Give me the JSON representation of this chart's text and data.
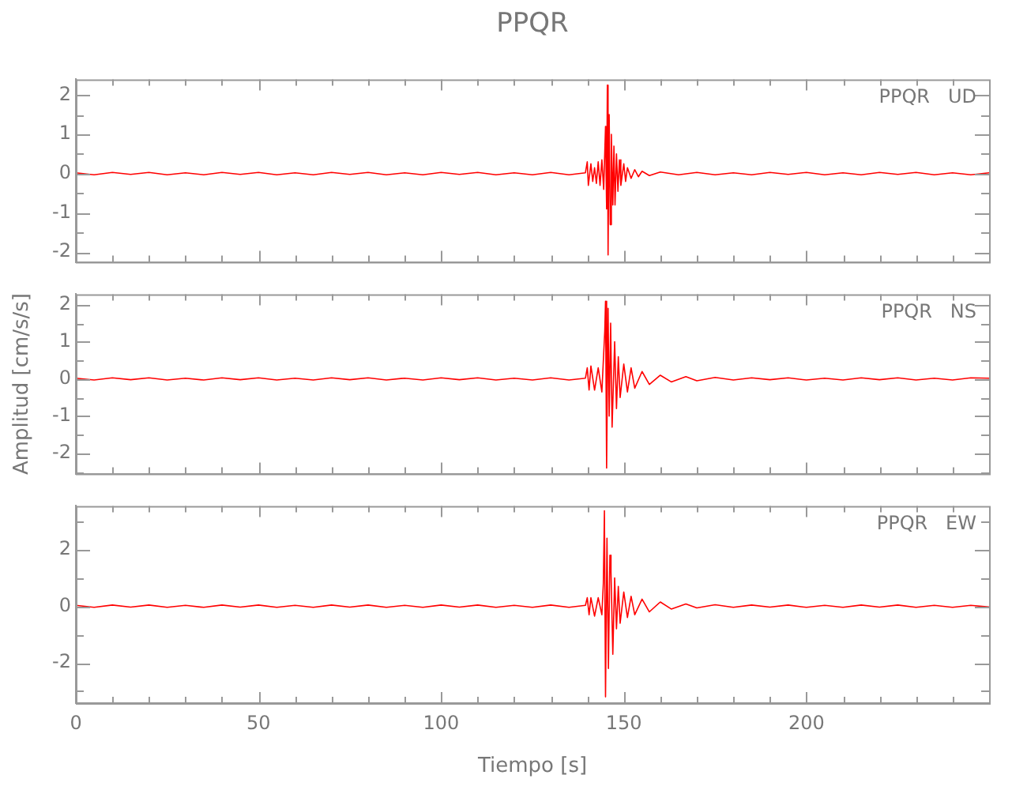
{
  "chart_data": [
    {
      "type": "line",
      "title": "PPQR",
      "annotations": [
        "PPQR   UD"
      ],
      "tick_labels": "y",
      "xlim": [
        0,
        250
      ],
      "ylim": [
        -2.25,
        2.4
      ],
      "xticks": [
        0,
        {
          "value": 10,
          "label": null
        },
        {
          "value": 20,
          "label": null
        },
        {
          "value": 30,
          "label": null
        },
        {
          "value": 40,
          "label": null
        },
        50,
        {
          "value": 60,
          "label": null
        },
        {
          "value": 70,
          "label": null
        },
        {
          "value": 80,
          "label": null
        },
        {
          "value": 90,
          "label": null
        },
        100,
        {
          "value": 110,
          "label": null
        },
        {
          "value": 120,
          "label": null
        },
        {
          "value": 130,
          "label": null
        },
        {
          "value": 140,
          "label": null
        },
        150,
        {
          "value": 160,
          "label": null
        },
        {
          "value": 170,
          "label": null
        },
        {
          "value": 180,
          "label": null
        },
        {
          "value": 190,
          "label": null
        },
        200,
        {
          "value": 210,
          "label": null
        },
        {
          "value": 220,
          "label": null
        },
        {
          "value": 230,
          "label": null
        },
        {
          "value": 240,
          "label": null
        }
      ],
      "yticks": [
        -2,
        {
          "value": -1.5,
          "label": null
        },
        -1,
        {
          "value": -0.5,
          "label": null
        },
        0,
        {
          "value": 0.5,
          "label": null
        },
        1,
        {
          "value": 1.5,
          "label": null
        },
        2
      ],
      "x": [
        0,
        5,
        10,
        15,
        20,
        25,
        30,
        35,
        40,
        45,
        50,
        55,
        60,
        65,
        70,
        75,
        80,
        85,
        90,
        95,
        100,
        105,
        110,
        115,
        120,
        125,
        130,
        135,
        139.5,
        140,
        140.3,
        141,
        141.5,
        142,
        142.5,
        143,
        143.5,
        144,
        144.5,
        145,
        145.3,
        145.5,
        145.7,
        146,
        146.3,
        146.6,
        147,
        147.3,
        147.6,
        148,
        148.4,
        148.8,
        149.2,
        150,
        150.5,
        151,
        152,
        153,
        154,
        155,
        157,
        160,
        165,
        170,
        175,
        180,
        185,
        190,
        195,
        200,
        205,
        210,
        215,
        220,
        225,
        230,
        235,
        240,
        245,
        250
      ],
      "series": [
        {
          "color": "#ff0000",
          "values": [
            0.02,
            -0.03,
            0.03,
            -0.02,
            0.03,
            -0.03,
            0.02,
            -0.03,
            0.03,
            -0.02,
            0.03,
            -0.03,
            0.02,
            -0.03,
            0.03,
            -0.02,
            0.03,
            -0.03,
            0.02,
            -0.03,
            0.03,
            -0.02,
            0.03,
            -0.03,
            0.02,
            -0.03,
            0.03,
            -0.03,
            0.02,
            0.3,
            -0.3,
            0.25,
            -0.2,
            0.15,
            -0.25,
            0.3,
            -0.3,
            0.35,
            -0.4,
            1.2,
            -0.9,
            2.25,
            -2.07,
            1.5,
            -1.3,
            1.0,
            -0.8,
            0.7,
            -0.8,
            0.5,
            -0.45,
            0.35,
            -0.3,
            0.25,
            -0.2,
            0.15,
            -0.12,
            0.1,
            -0.08,
            0.06,
            -0.05,
            0.04,
            -0.03,
            0.03,
            -0.03,
            0.02,
            -0.03,
            0.03,
            -0.02,
            0.03,
            -0.03,
            0.02,
            -0.03,
            0.03,
            -0.02,
            0.03,
            -0.03,
            0.02,
            -0.03,
            0.02
          ]
        }
      ]
    },
    {
      "type": "line",
      "ylabel": "Amplitud [cm/s/s]",
      "annotations": [
        "PPQR   NS"
      ],
      "tick_labels": "y",
      "xlim": [
        0,
        250
      ],
      "ylim": [
        -2.55,
        2.28
      ],
      "xticks": [
        0,
        {
          "value": 10,
          "label": null
        },
        {
          "value": 20,
          "label": null
        },
        {
          "value": 30,
          "label": null
        },
        {
          "value": 40,
          "label": null
        },
        50,
        {
          "value": 60,
          "label": null
        },
        {
          "value": 70,
          "label": null
        },
        {
          "value": 80,
          "label": null
        },
        {
          "value": 90,
          "label": null
        },
        100,
        {
          "value": 110,
          "label": null
        },
        {
          "value": 120,
          "label": null
        },
        {
          "value": 130,
          "label": null
        },
        {
          "value": 140,
          "label": null
        },
        150,
        {
          "value": 160,
          "label": null
        },
        {
          "value": 170,
          "label": null
        },
        {
          "value": 180,
          "label": null
        },
        {
          "value": 190,
          "label": null
        },
        200,
        {
          "value": 210,
          "label": null
        },
        {
          "value": 220,
          "label": null
        },
        {
          "value": 230,
          "label": null
        },
        {
          "value": 240,
          "label": null
        }
      ],
      "yticks": [
        {
          "value": -2.5,
          "label": null
        },
        -2,
        {
          "value": -1.5,
          "label": null
        },
        -1,
        {
          "value": -0.5,
          "label": null
        },
        0,
        {
          "value": 0.5,
          "label": null
        },
        1,
        {
          "value": 1.5,
          "label": null
        },
        2
      ],
      "x": [
        0,
        5,
        10,
        15,
        20,
        25,
        30,
        35,
        40,
        45,
        50,
        55,
        60,
        65,
        70,
        75,
        80,
        85,
        90,
        95,
        100,
        105,
        110,
        115,
        120,
        125,
        130,
        135,
        139.5,
        140,
        140.5,
        141,
        142,
        143,
        144,
        144.8,
        145,
        145.3,
        145.7,
        146,
        146.4,
        146.8,
        147.5,
        148,
        148.5,
        149,
        150,
        151,
        152,
        153,
        155,
        157,
        160,
        163,
        167,
        170,
        175,
        180,
        185,
        190,
        195,
        200,
        205,
        210,
        215,
        220,
        225,
        230,
        235,
        240,
        245,
        250
      ],
      "series": [
        {
          "color": "#ff0000",
          "values": [
            0.02,
            -0.03,
            0.03,
            -0.02,
            0.03,
            -0.03,
            0.02,
            -0.03,
            0.03,
            -0.02,
            0.03,
            -0.03,
            0.02,
            -0.03,
            0.03,
            -0.02,
            0.03,
            -0.03,
            0.02,
            -0.03,
            0.03,
            -0.02,
            0.03,
            -0.03,
            0.02,
            -0.03,
            0.03,
            -0.03,
            0.02,
            0.3,
            -0.3,
            0.35,
            -0.3,
            0.3,
            -0.35,
            1.3,
            2.09,
            -2.4,
            1.9,
            -1.0,
            1.5,
            -1.3,
            1.0,
            -0.8,
            0.6,
            -0.5,
            0.4,
            -0.35,
            0.3,
            -0.25,
            0.2,
            -0.15,
            0.1,
            -0.08,
            0.06,
            -0.05,
            0.04,
            -0.03,
            0.03,
            -0.02,
            0.03,
            -0.03,
            0.02,
            -0.03,
            0.03,
            -0.02,
            0.03,
            -0.03,
            0.02,
            -0.03,
            0.03,
            0.02
          ]
        }
      ]
    },
    {
      "type": "line",
      "xlabel": "Tiempo [s]",
      "annotations": [
        "PPQR   EW"
      ],
      "xlim": [
        0,
        250
      ],
      "ylim": [
        -3.42,
        3.54
      ],
      "xticks": [
        0,
        {
          "value": 10,
          "label": null
        },
        {
          "value": 20,
          "label": null
        },
        {
          "value": 30,
          "label": null
        },
        {
          "value": 40,
          "label": null
        },
        50,
        {
          "value": 60,
          "label": null
        },
        {
          "value": 70,
          "label": null
        },
        {
          "value": 80,
          "label": null
        },
        {
          "value": 90,
          "label": null
        },
        100,
        {
          "value": 110,
          "label": null
        },
        {
          "value": 120,
          "label": null
        },
        {
          "value": 130,
          "label": null
        },
        {
          "value": 140,
          "label": null
        },
        150,
        {
          "value": 160,
          "label": null
        },
        {
          "value": 170,
          "label": null
        },
        {
          "value": 180,
          "label": null
        },
        {
          "value": 190,
          "label": null
        },
        200,
        {
          "value": 210,
          "label": null
        },
        {
          "value": 220,
          "label": null
        },
        {
          "value": 230,
          "label": null
        },
        {
          "value": 240,
          "label": null
        }
      ],
      "yticks": [
        {
          "value": -3,
          "label": null
        },
        -2,
        {
          "value": -1,
          "label": null
        },
        0,
        {
          "value": 1,
          "label": null
        },
        2,
        {
          "value": 3,
          "label": null
        }
      ],
      "x": [
        0,
        5,
        10,
        15,
        20,
        25,
        30,
        35,
        40,
        45,
        50,
        55,
        60,
        65,
        70,
        75,
        80,
        85,
        90,
        95,
        100,
        105,
        110,
        115,
        120,
        125,
        130,
        135,
        139.5,
        140,
        140.5,
        141,
        142,
        143,
        144,
        144.4,
        144.7,
        145,
        145.4,
        145.8,
        146.2,
        146.5,
        147,
        147.5,
        148,
        148.5,
        149,
        150,
        151,
        152,
        153,
        155,
        157,
        160,
        163,
        167,
        170,
        175,
        180,
        185,
        190,
        195,
        200,
        205,
        210,
        215,
        220,
        225,
        230,
        235,
        240,
        245,
        250
      ],
      "series": [
        {
          "color": "#ff0000",
          "values": [
            0.03,
            -0.04,
            0.04,
            -0.03,
            0.04,
            -0.04,
            0.03,
            -0.04,
            0.04,
            -0.03,
            0.04,
            -0.04,
            0.03,
            -0.04,
            0.04,
            -0.03,
            0.04,
            -0.04,
            0.03,
            -0.04,
            0.04,
            -0.03,
            0.04,
            -0.04,
            0.03,
            -0.04,
            0.04,
            -0.04,
            0.03,
            0.3,
            -0.3,
            0.3,
            -0.35,
            0.3,
            -0.3,
            0.8,
            3.37,
            -3.2,
            2.4,
            -2.2,
            1.8,
            1.2,
            -1.7,
            1.0,
            -0.8,
            0.7,
            -0.6,
            0.5,
            -0.4,
            0.35,
            -0.3,
            0.25,
            -0.2,
            0.15,
            -0.1,
            0.08,
            -0.06,
            0.05,
            -0.04,
            0.04,
            -0.03,
            0.04,
            -0.04,
            0.03,
            -0.04,
            0.04,
            -0.03,
            0.04,
            -0.04,
            0.03,
            -0.04,
            0.03,
            -0.03
          ]
        }
      ]
    }
  ]
}
